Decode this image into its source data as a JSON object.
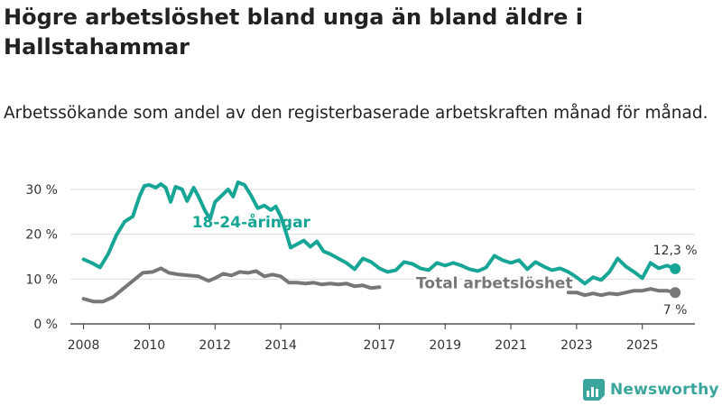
{
  "title": "Högre arbetslöshet bland unga än bland äldre i Hallstahammar",
  "subtitle": "Arbetssökande som andel av den registerbaserade arbetskraften månad för månad.",
  "brand": {
    "name": "Newsworthy"
  },
  "colors": {
    "youth": "#17a596",
    "total": "#777777",
    "axis": "#333333",
    "grid": "#dddddd",
    "brand": "#3aa59a"
  },
  "chart_data": {
    "type": "line",
    "xlim": [
      2007.6,
      2026.6
    ],
    "ylim": [
      0,
      32
    ],
    "y_ticks": [
      0,
      10,
      20,
      30
    ],
    "y_tick_labels": [
      "0 %",
      "10 %",
      "20 %",
      "30 %"
    ],
    "x_ticks": [
      2008,
      2010,
      2012,
      2014,
      2017,
      2019,
      2021,
      2023,
      2025
    ],
    "x_tick_labels": [
      "2008",
      "2010",
      "2012",
      "2014",
      "2017",
      "2019",
      "2021",
      "2023",
      "2025"
    ],
    "series": [
      {
        "name": "18-24-åringar",
        "label": "18-24-åringar",
        "end_label": "12,3 %",
        "end_value": 12.3,
        "points": [
          [
            2008.0,
            14.4
          ],
          [
            2008.25,
            13.6
          ],
          [
            2008.5,
            12.6
          ],
          [
            2008.75,
            15.6
          ],
          [
            2009.0,
            19.8
          ],
          [
            2009.25,
            22.8
          ],
          [
            2009.5,
            24.0
          ],
          [
            2009.7,
            28.4
          ],
          [
            2009.85,
            30.8
          ],
          [
            2010.0,
            31.0
          ],
          [
            2010.2,
            30.4
          ],
          [
            2010.35,
            31.2
          ],
          [
            2010.5,
            30.4
          ],
          [
            2010.65,
            27.2
          ],
          [
            2010.8,
            30.6
          ],
          [
            2011.0,
            30.0
          ],
          [
            2011.15,
            27.4
          ],
          [
            2011.35,
            30.4
          ],
          [
            2011.5,
            28.4
          ],
          [
            2011.7,
            25.2
          ],
          [
            2011.85,
            23.4
          ],
          [
            2012.0,
            27.2
          ],
          [
            2012.2,
            28.6
          ],
          [
            2012.4,
            30.0
          ],
          [
            2012.55,
            28.4
          ],
          [
            2012.7,
            31.6
          ],
          [
            2012.9,
            31.0
          ],
          [
            2013.1,
            28.6
          ],
          [
            2013.3,
            25.8
          ],
          [
            2013.5,
            26.4
          ],
          [
            2013.7,
            25.4
          ],
          [
            2013.85,
            26.2
          ],
          [
            2014.0,
            24.0
          ],
          [
            2014.15,
            20.6
          ],
          [
            2014.3,
            17.0
          ],
          [
            2014.5,
            17.8
          ],
          [
            2014.7,
            18.6
          ],
          [
            2014.9,
            17.2
          ],
          [
            2015.1,
            18.4
          ],
          [
            2015.3,
            16.2
          ],
          [
            2015.5,
            15.6
          ],
          [
            2015.75,
            14.6
          ],
          [
            2016.0,
            13.6
          ],
          [
            2016.25,
            12.2
          ],
          [
            2016.5,
            14.6
          ],
          [
            2016.75,
            13.8
          ],
          [
            2017.0,
            12.4
          ],
          [
            2017.25,
            11.6
          ],
          [
            2017.5,
            12.0
          ],
          [
            2017.75,
            13.8
          ],
          [
            2018.0,
            13.4
          ],
          [
            2018.25,
            12.4
          ],
          [
            2018.5,
            12.0
          ],
          [
            2018.75,
            13.6
          ],
          [
            2019.0,
            13.0
          ],
          [
            2019.25,
            13.6
          ],
          [
            2019.5,
            13.0
          ],
          [
            2019.75,
            12.2
          ],
          [
            2020.0,
            11.8
          ],
          [
            2020.25,
            12.6
          ],
          [
            2020.5,
            15.2
          ],
          [
            2020.75,
            14.2
          ],
          [
            2021.0,
            13.6
          ],
          [
            2021.25,
            14.2
          ],
          [
            2021.5,
            12.2
          ],
          [
            2021.75,
            13.8
          ],
          [
            2022.0,
            12.8
          ],
          [
            2022.25,
            12.0
          ],
          [
            2022.5,
            12.4
          ],
          [
            2022.75,
            11.6
          ],
          [
            2023.0,
            10.4
          ],
          [
            2023.25,
            9.0
          ],
          [
            2023.5,
            10.4
          ],
          [
            2023.75,
            9.8
          ],
          [
            2024.0,
            11.6
          ],
          [
            2024.25,
            14.6
          ],
          [
            2024.5,
            12.8
          ],
          [
            2024.75,
            11.6
          ],
          [
            2025.0,
            10.2
          ],
          [
            2025.25,
            13.6
          ],
          [
            2025.5,
            12.4
          ],
          [
            2025.75,
            13.0
          ],
          [
            2026.0,
            12.3
          ]
        ]
      },
      {
        "name": "Total arbetslöshet",
        "label": "Total arbetslöshet",
        "end_label": "7 %",
        "end_value": 7.0,
        "points": [
          [
            2008.0,
            5.6
          ],
          [
            2008.3,
            5.0
          ],
          [
            2008.6,
            5.0
          ],
          [
            2008.9,
            6.0
          ],
          [
            2009.2,
            7.8
          ],
          [
            2009.5,
            9.6
          ],
          [
            2009.8,
            11.4
          ],
          [
            2010.1,
            11.6
          ],
          [
            2010.35,
            12.4
          ],
          [
            2010.6,
            11.4
          ],
          [
            2010.9,
            11.0
          ],
          [
            2011.2,
            10.8
          ],
          [
            2011.5,
            10.6
          ],
          [
            2011.8,
            9.6
          ],
          [
            2012.0,
            10.2
          ],
          [
            2012.25,
            11.2
          ],
          [
            2012.5,
            10.8
          ],
          [
            2012.75,
            11.6
          ],
          [
            2013.0,
            11.4
          ],
          [
            2013.25,
            11.8
          ],
          [
            2013.5,
            10.6
          ],
          [
            2013.75,
            11.0
          ],
          [
            2014.0,
            10.6
          ],
          [
            2014.25,
            9.2
          ],
          [
            2014.5,
            9.2
          ],
          [
            2014.75,
            9.0
          ],
          [
            2015.0,
            9.2
          ],
          [
            2015.25,
            8.8
          ],
          [
            2015.5,
            9.0
          ],
          [
            2015.75,
            8.8
          ],
          [
            2016.0,
            9.0
          ],
          [
            2016.25,
            8.4
          ],
          [
            2016.5,
            8.6
          ],
          [
            2016.75,
            8.0
          ],
          [
            2017.0,
            8.2
          ],
          [
            2022.75,
            7.0
          ],
          [
            2023.0,
            7.0
          ],
          [
            2023.25,
            6.4
          ],
          [
            2023.5,
            6.8
          ],
          [
            2023.75,
            6.4
          ],
          [
            2024.0,
            6.8
          ],
          [
            2024.25,
            6.6
          ],
          [
            2024.5,
            7.0
          ],
          [
            2024.75,
            7.4
          ],
          [
            2025.0,
            7.4
          ],
          [
            2025.25,
            7.8
          ],
          [
            2025.5,
            7.4
          ],
          [
            2025.75,
            7.4
          ],
          [
            2026.0,
            7.0
          ]
        ]
      }
    ]
  }
}
